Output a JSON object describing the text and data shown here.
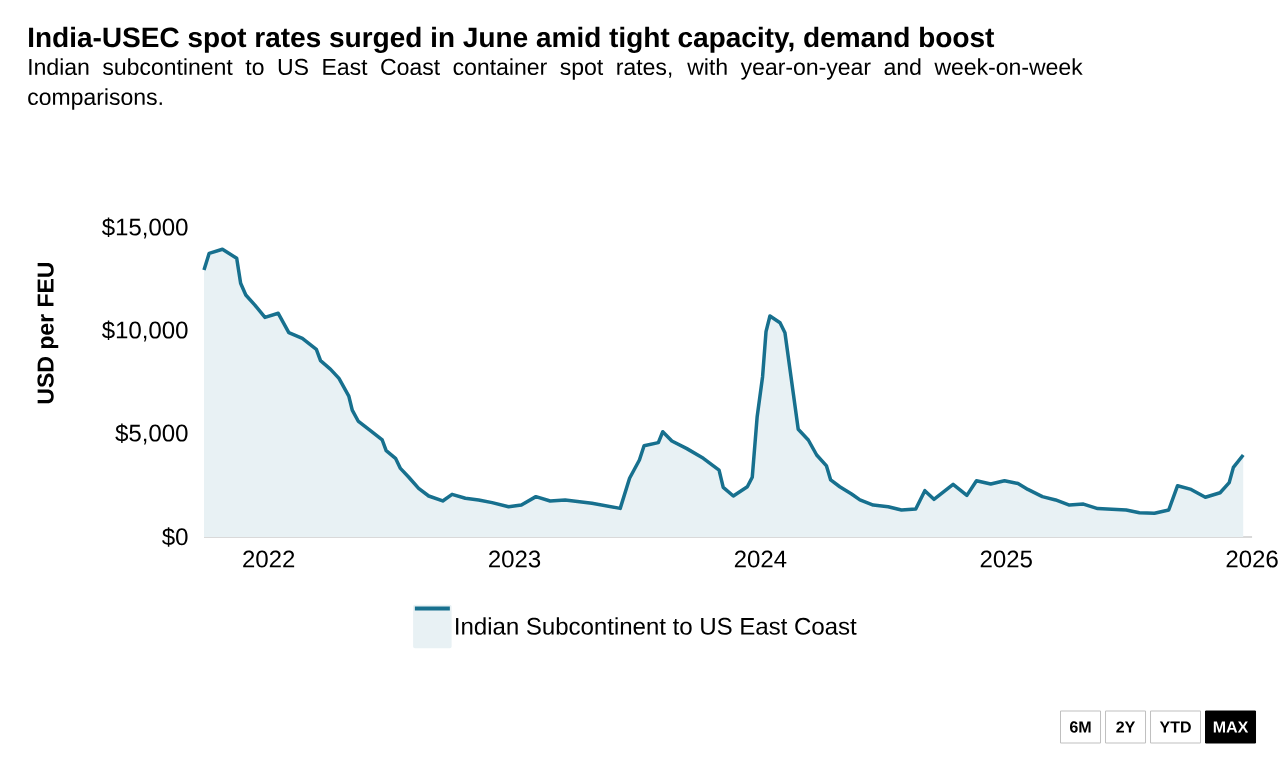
{
  "chart_data": {
    "type": "area",
    "title": "India-USEC spot rates surged in June amid tight capacity, demand boost",
    "subtitle": "Indian subcontinent to US East Coast container spot rates, with year-on-year and week-on-week comparisons.",
    "ylabel": "USD per FEU",
    "annotations": [
      "6M",
      "2Y",
      "YTD",
      "MAX"
    ],
    "x": [
      2021.737,
      2021.758,
      2021.812,
      2021.87,
      2021.886,
      2021.907,
      2021.944,
      2021.985,
      2022.039,
      2022.082,
      2022.137,
      2022.194,
      2022.211,
      2022.252,
      2022.286,
      2022.326,
      2022.34,
      2022.364,
      2022.414,
      2022.462,
      2022.478,
      2022.516,
      2022.536,
      2022.57,
      2022.61,
      2022.651,
      2022.708,
      2022.746,
      2022.8,
      2022.854,
      2022.909,
      2022.976,
      2023.028,
      2023.087,
      2023.145,
      2023.206,
      2023.315,
      2023.43,
      2023.468,
      2023.508,
      2023.527,
      2023.585,
      2023.603,
      2023.64,
      2023.701,
      2023.768,
      2023.832,
      2023.849,
      2023.89,
      2023.947,
      2023.967,
      2023.987,
      2024.009,
      2024.023,
      2024.039,
      2024.08,
      2024.1,
      2024.134,
      2024.154,
      2024.195,
      2024.229,
      2024.269,
      2024.286,
      2024.323,
      2024.371,
      2024.405,
      2024.459,
      2024.52,
      2024.574,
      2024.632,
      2024.669,
      2024.706,
      2024.784,
      2024.84,
      2024.879,
      2024.937,
      2024.993,
      2025.048,
      2025.088,
      2025.147,
      2025.201,
      2025.257,
      2025.314,
      2025.372,
      2025.488,
      2025.542,
      2025.603,
      2025.661,
      2025.697,
      2025.752,
      2025.81,
      2025.87,
      2025.907,
      2025.924,
      2025.964
    ],
    "series": [
      {
        "name": "Indian Subcontinent to US East Coast",
        "color": "#17708e",
        "values": [
          12960,
          13770,
          13970,
          13530,
          12320,
          11750,
          11260,
          10660,
          10860,
          9920,
          9640,
          9110,
          8560,
          8140,
          7700,
          6840,
          6160,
          5630,
          5160,
          4710,
          4190,
          3820,
          3330,
          2900,
          2360,
          1990,
          1750,
          2070,
          1880,
          1800,
          1670,
          1470,
          1550,
          1960,
          1750,
          1800,
          1640,
          1390,
          2850,
          3740,
          4430,
          4580,
          5110,
          4660,
          4290,
          3820,
          3250,
          2410,
          1990,
          2440,
          2900,
          5840,
          7780,
          9970,
          10730,
          10400,
          9920,
          6970,
          5230,
          4710,
          3980,
          3450,
          2770,
          2440,
          2090,
          1800,
          1550,
          1470,
          1310,
          1360,
          2250,
          1830,
          2560,
          2020,
          2730,
          2570,
          2730,
          2600,
          2310,
          1960,
          1800,
          1550,
          1600,
          1380,
          1310,
          1180,
          1150,
          1310,
          2490,
          2310,
          1930,
          2150,
          2640,
          3380,
          3980
        ]
      }
    ],
    "xlim": [
      2021.737,
      2026.0
    ],
    "xticks": [
      2022,
      2023,
      2024,
      2025,
      2026
    ],
    "ylim": [
      0,
      15000
    ],
    "yticks": [
      {
        "value": 0,
        "label": "$0"
      },
      {
        "value": 5000,
        "label": "$5,000"
      },
      {
        "value": 10000,
        "label": "$10,000"
      },
      {
        "value": 15000,
        "label": "$15,000"
      }
    ],
    "legend": "bottom"
  }
}
